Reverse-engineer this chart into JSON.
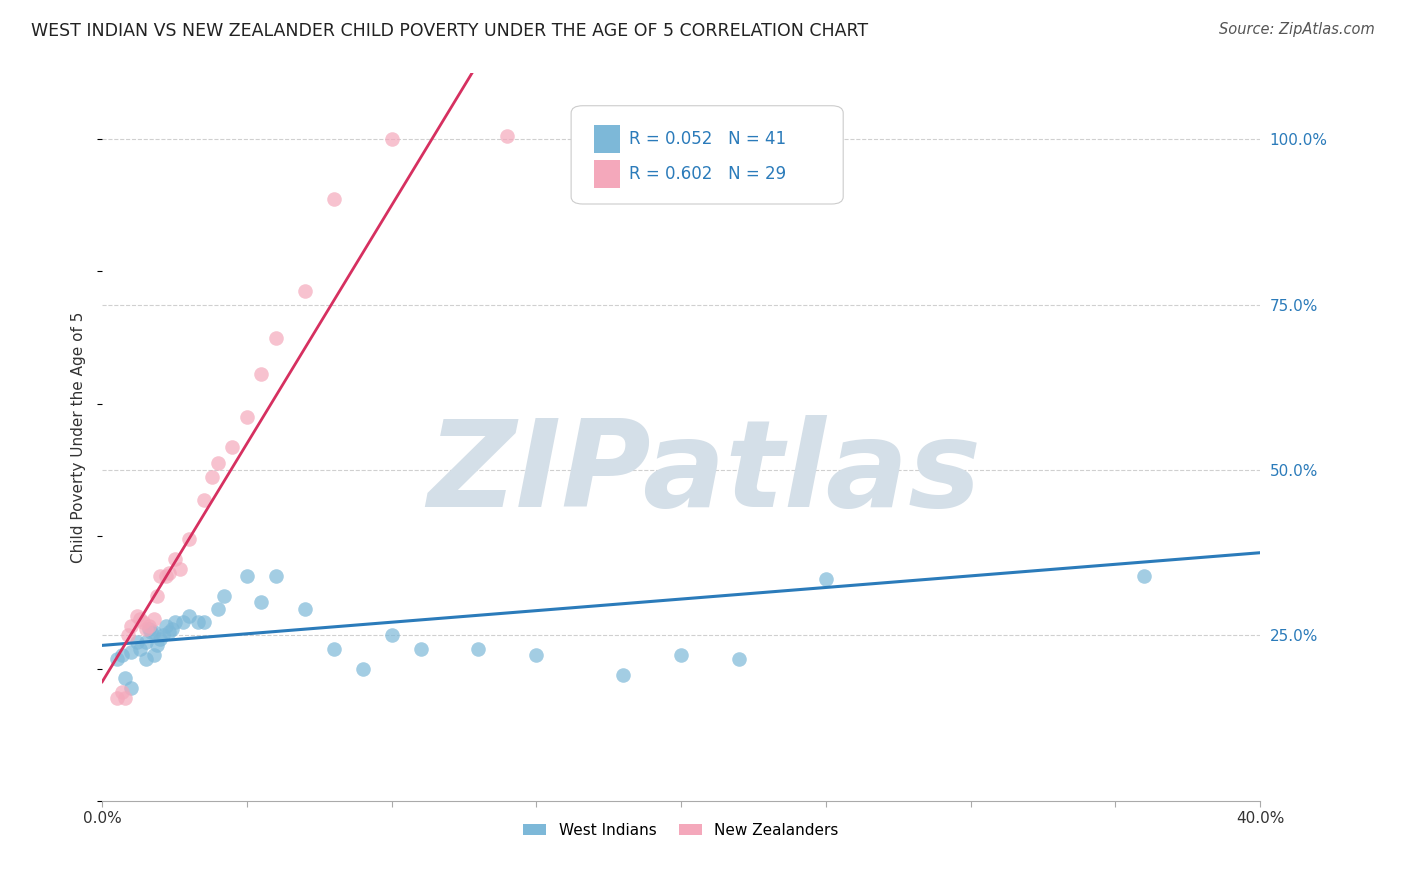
{
  "title": "WEST INDIAN VS NEW ZEALANDER CHILD POVERTY UNDER THE AGE OF 5 CORRELATION CHART",
  "source": "Source: ZipAtlas.com",
  "ylabel": "Child Poverty Under the Age of 5",
  "xlim": [
    0.0,
    0.4
  ],
  "ylim": [
    0.0,
    1.1
  ],
  "xticks": [
    0.0,
    0.05,
    0.1,
    0.15,
    0.2,
    0.25,
    0.3,
    0.35,
    0.4
  ],
  "xticklabels": [
    "0.0%",
    "",
    "",
    "",
    "",
    "",
    "",
    "",
    "40.0%"
  ],
  "ytick_positions": [
    0.25,
    0.5,
    0.75,
    1.0
  ],
  "ytick_labels": [
    "25.0%",
    "50.0%",
    "75.0%",
    "100.0%"
  ],
  "blue_color": "#7db8d8",
  "pink_color": "#f4a8bb",
  "blue_line_color": "#2b7bba",
  "pink_line_color": "#d63060",
  "blue_R": 0.052,
  "blue_N": 41,
  "pink_R": 0.602,
  "pink_N": 29,
  "watermark": "ZIPatlas",
  "watermark_color": "#d4dfe8",
  "background_color": "#ffffff",
  "grid_color": "#d0d0d0",
  "blue_x": [
    0.005,
    0.007,
    0.008,
    0.01,
    0.01,
    0.012,
    0.013,
    0.015,
    0.015,
    0.016,
    0.017,
    0.018,
    0.018,
    0.019,
    0.02,
    0.021,
    0.022,
    0.023,
    0.024,
    0.025,
    0.028,
    0.03,
    0.033,
    0.035,
    0.04,
    0.042,
    0.05,
    0.055,
    0.06,
    0.07,
    0.08,
    0.09,
    0.1,
    0.11,
    0.13,
    0.15,
    0.18,
    0.2,
    0.22,
    0.25,
    0.36
  ],
  "blue_y": [
    0.215,
    0.22,
    0.185,
    0.225,
    0.17,
    0.24,
    0.23,
    0.24,
    0.215,
    0.26,
    0.255,
    0.255,
    0.22,
    0.235,
    0.245,
    0.25,
    0.265,
    0.255,
    0.26,
    0.27,
    0.27,
    0.28,
    0.27,
    0.27,
    0.29,
    0.31,
    0.34,
    0.3,
    0.34,
    0.29,
    0.23,
    0.2,
    0.25,
    0.23,
    0.23,
    0.22,
    0.19,
    0.22,
    0.215,
    0.335,
    0.34
  ],
  "pink_x": [
    0.005,
    0.007,
    0.008,
    0.009,
    0.01,
    0.012,
    0.013,
    0.014,
    0.015,
    0.016,
    0.018,
    0.019,
    0.02,
    0.022,
    0.023,
    0.025,
    0.027,
    0.03,
    0.035,
    0.038,
    0.04,
    0.045,
    0.05,
    0.055,
    0.06,
    0.07,
    0.08,
    0.1,
    0.14
  ],
  "pink_y": [
    0.155,
    0.165,
    0.155,
    0.25,
    0.265,
    0.28,
    0.275,
    0.27,
    0.26,
    0.265,
    0.275,
    0.31,
    0.34,
    0.34,
    0.345,
    0.365,
    0.35,
    0.395,
    0.455,
    0.49,
    0.51,
    0.535,
    0.58,
    0.645,
    0.7,
    0.77,
    0.91,
    1.0,
    1.005
  ],
  "pink_line_slope": 7.2,
  "pink_line_intercept": 0.18,
  "blue_line_slope": 0.35,
  "blue_line_intercept": 0.235
}
